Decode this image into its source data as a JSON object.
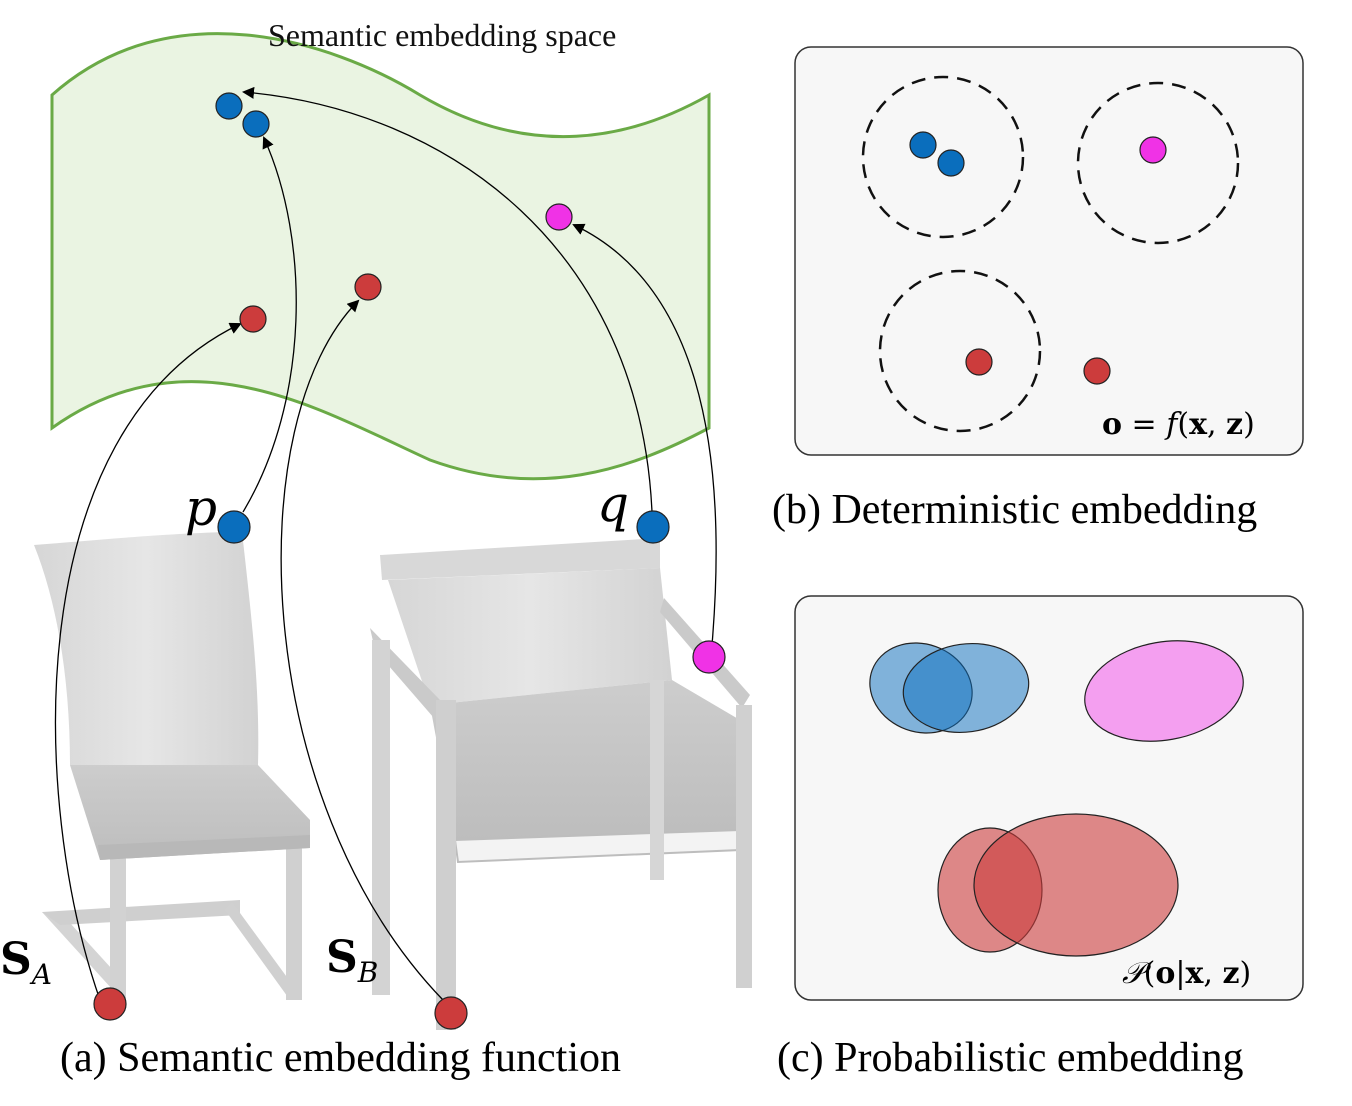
{
  "panel_a": {
    "space_label": "Semantic embedding space",
    "caption": "(a) Semantic embedding function",
    "point_p": "p",
    "point_q": "q",
    "shape_a": {
      "base": "S",
      "sub": "A"
    },
    "shape_b": {
      "base": "S",
      "sub": "B"
    }
  },
  "panel_b": {
    "caption": "(b) Deterministic embedding",
    "formula": {
      "lhs": "o",
      "eq": " = ",
      "fn": "f",
      "open": "(",
      "x": "x",
      "comma": ", ",
      "z": "z",
      "close": ")"
    }
  },
  "panel_c": {
    "caption": "(c) Probabilistic embedding",
    "formula": {
      "fn": "𝒫",
      "open": "(",
      "o": "o",
      "bar": "|",
      "x": "x",
      "comma": ", ",
      "z": "z",
      "close": ")"
    }
  },
  "colors": {
    "blue": "#0a6ebd",
    "red": "#cc3c3c",
    "magenta": "#f032e6",
    "sheet_fill": "#eaf4e2",
    "sheet_stroke": "#6aaa46",
    "panel_fill": "#f7f7f7"
  }
}
